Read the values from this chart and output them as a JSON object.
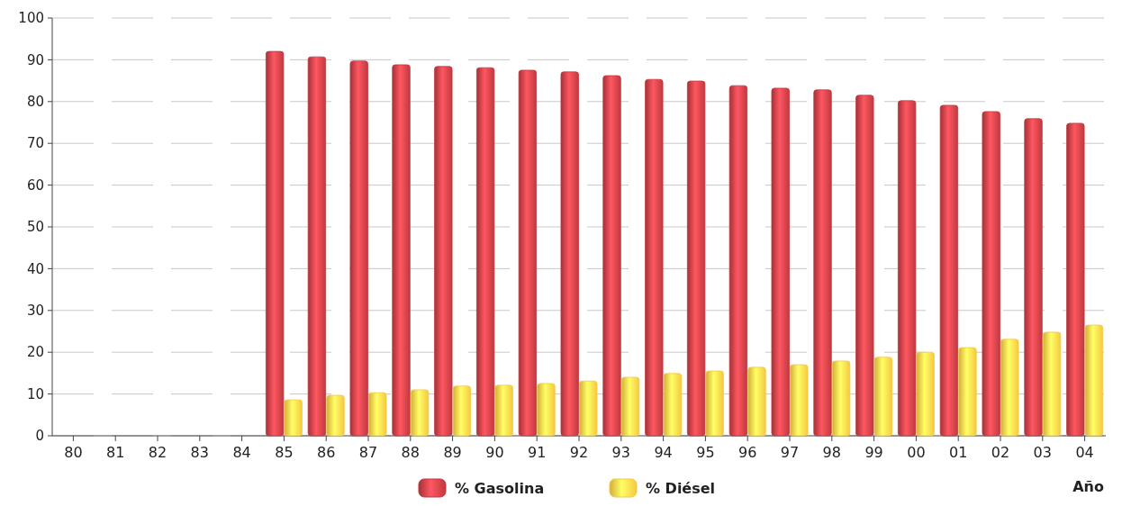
{
  "chart_data": {
    "type": "bar",
    "xlabel": "Año",
    "categories": [
      "80",
      "81",
      "82",
      "83",
      "84",
      "85",
      "86",
      "87",
      "88",
      "89",
      "90",
      "91",
      "92",
      "93",
      "94",
      "95",
      "96",
      "97",
      "98",
      "99",
      "00",
      "01",
      "02",
      "03",
      "04"
    ],
    "series": [
      {
        "name": "% Gasolina",
        "color": "#c0393f",
        "values": [
          null,
          null,
          null,
          null,
          null,
          92,
          90.7,
          89.7,
          88.8,
          88.4,
          88.1,
          87.5,
          87.1,
          86.2,
          85.3,
          84.9,
          83.8,
          83.2,
          82.8,
          81.5,
          80.2,
          79.1,
          77.6,
          75.9,
          74.8
        ]
      },
      {
        "name": "% Diésel",
        "color": "#f5c842",
        "values": [
          null,
          null,
          null,
          null,
          null,
          8.6,
          9.7,
          10.3,
          11,
          11.9,
          12.1,
          12.5,
          13.1,
          14,
          14.9,
          15.5,
          16.4,
          17,
          17.9,
          18.8,
          20,
          21.1,
          23.1,
          24.8,
          26.5
        ]
      }
    ],
    "ylim": [
      0,
      100
    ],
    "yticks": [
      0,
      10,
      20,
      30,
      40,
      50,
      60,
      70,
      80,
      90,
      100
    ],
    "grid": "y",
    "legend": "bottom"
  }
}
